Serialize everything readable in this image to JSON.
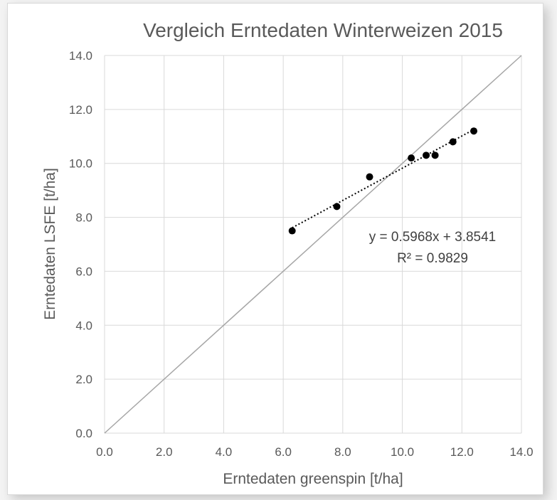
{
  "chart_data": {
    "type": "scatter",
    "title": "Vergleich Erntedaten Winterweizen 2015",
    "xlabel": "Erntedaten greenspin [t/ha]",
    "ylabel": "Erntedaten LSFE [t/ha]",
    "xlim": [
      0,
      14
    ],
    "ylim": [
      0,
      14
    ],
    "x_ticks": [
      "0.0",
      "2.0",
      "4.0",
      "6.0",
      "8.0",
      "10.0",
      "12.0",
      "14.0"
    ],
    "y_ticks": [
      "0.0",
      "2.0",
      "4.0",
      "6.0",
      "8.0",
      "10.0",
      "12.0",
      "14.0"
    ],
    "grid": true,
    "points": [
      {
        "x": 6.3,
        "y": 7.5
      },
      {
        "x": 7.8,
        "y": 8.4
      },
      {
        "x": 8.9,
        "y": 9.5
      },
      {
        "x": 10.3,
        "y": 10.2
      },
      {
        "x": 10.8,
        "y": 10.3
      },
      {
        "x": 11.1,
        "y": 10.3
      },
      {
        "x": 11.7,
        "y": 10.8
      },
      {
        "x": 12.4,
        "y": 11.2
      }
    ],
    "reference_line": {
      "slope": 1,
      "intercept": 0
    },
    "trendline": {
      "slope": 0.5968,
      "intercept": 3.8541,
      "x_range": [
        6.3,
        12.4
      ],
      "equation": "y = 0.5968x + 3.8541",
      "r_squared": "R² = 0.9829"
    },
    "colors": {
      "points": "#000000",
      "gridlines": "#d9d9d9",
      "reference_line": "#a6a6a6",
      "text": "#595959"
    }
  }
}
